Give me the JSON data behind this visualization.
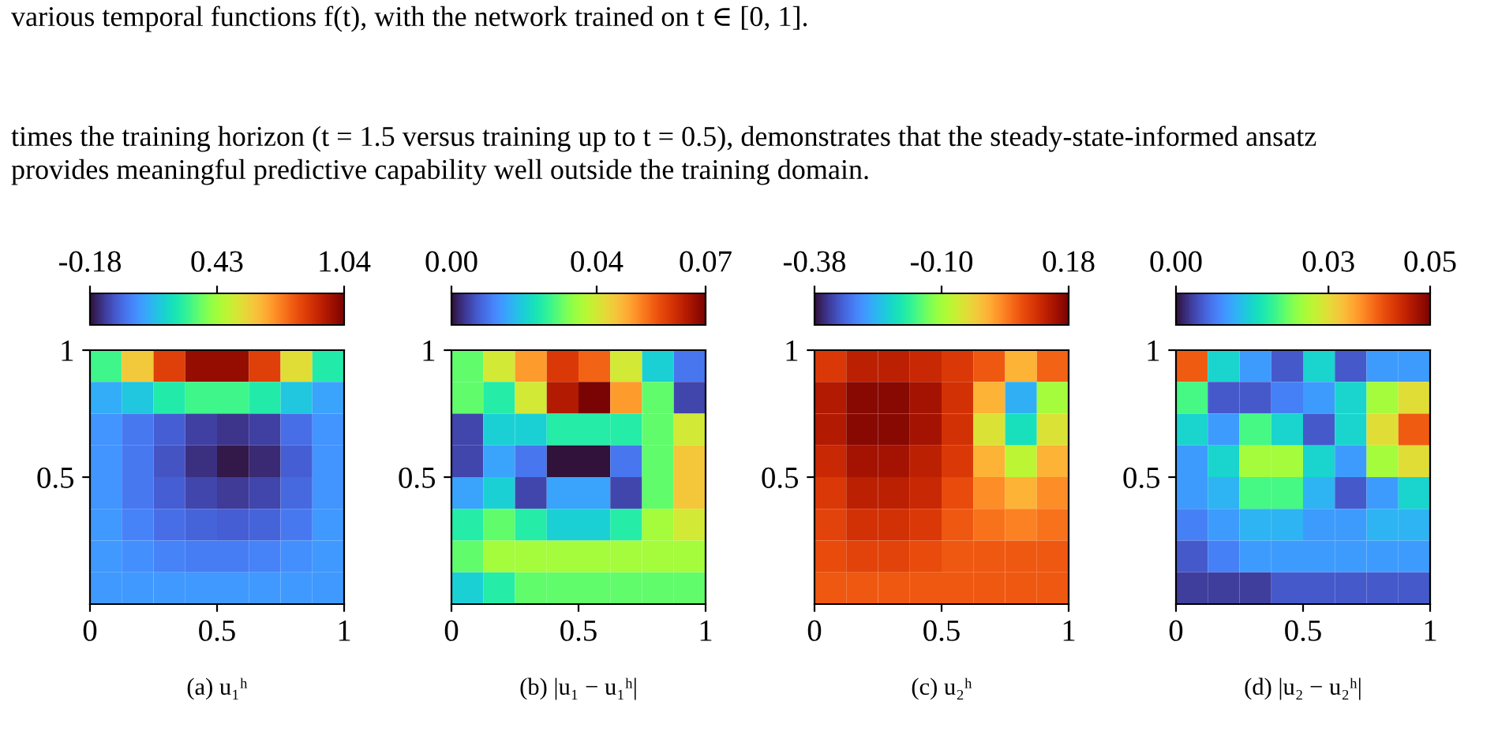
{
  "chart_data": [
    {
      "type": "heatmap",
      "xlabel": "(a) u₁ʰ",
      "annotations": [
        "various temporal functions f(t), with the network trained on t ∈ [0, 1].",
        "times the training horizon (t = 1.5 versus training up to t = 0.5), demonstrates that the steady-state-informed ansatz",
        "provides meaningful predictive capability well outside the training domain."
      ],
      "xlim": [
        0,
        1
      ],
      "ylim": [
        0,
        1
      ],
      "xticks": [
        0,
        0.5,
        1
      ],
      "yticks": [
        0.5,
        1
      ],
      "clim": [
        -0.18,
        1.04
      ],
      "cticks": [
        {
          "value": -0.18,
          "label": "-0.18"
        },
        {
          "value": 0.43,
          "label": "0.43"
        },
        {
          "value": 1.04,
          "label": "1.04"
        }
      ],
      "cells": [
        [
          0.3,
          0.6,
          0.85,
          1.0,
          1.0,
          0.85,
          0.55,
          0.25
        ],
        [
          0.1,
          0.15,
          0.25,
          0.3,
          0.3,
          0.25,
          0.15,
          0.08
        ],
        [
          0.05,
          0.0,
          -0.05,
          -0.1,
          -0.12,
          -0.1,
          -0.02,
          0.05
        ],
        [
          0.05,
          0.0,
          -0.07,
          -0.13,
          -0.17,
          -0.14,
          -0.05,
          0.05
        ],
        [
          0.05,
          0.0,
          -0.05,
          -0.09,
          -0.11,
          -0.09,
          -0.03,
          0.05
        ],
        [
          0.06,
          0.02,
          -0.02,
          -0.04,
          -0.05,
          -0.04,
          0.0,
          0.06
        ],
        [
          0.06,
          0.04,
          0.02,
          0.01,
          0.01,
          0.02,
          0.04,
          0.06
        ],
        [
          0.06,
          0.06,
          0.06,
          0.06,
          0.06,
          0.06,
          0.06,
          0.06
        ]
      ]
    },
    {
      "type": "heatmap",
      "xlabel": "(b) |u₁ − u₁ʰ|",
      "xlim": [
        0,
        1
      ],
      "ylim": [
        0,
        1
      ],
      "xticks": [
        0,
        0.5,
        1
      ],
      "yticks": [
        0.5,
        1
      ],
      "clim": [
        0,
        0.07
      ],
      "cticks": [
        {
          "value": 0,
          "label": "0.00"
        },
        {
          "value": 0.04,
          "label": "0.04"
        },
        {
          "value": 0.07,
          "label": "0.07"
        }
      ],
      "cells": [
        [
          0.03,
          0.04,
          0.05,
          0.06,
          0.055,
          0.04,
          0.02,
          0.01
        ],
        [
          0.03,
          0.025,
          0.04,
          0.065,
          0.07,
          0.05,
          0.03,
          0.005
        ],
        [
          0.005,
          0.02,
          0.02,
          0.025,
          0.025,
          0.025,
          0.03,
          0.04
        ],
        [
          0.005,
          0.015,
          0.01,
          0.0,
          0.0,
          0.01,
          0.03,
          0.045
        ],
        [
          0.015,
          0.02,
          0.005,
          0.015,
          0.015,
          0.005,
          0.03,
          0.045
        ],
        [
          0.025,
          0.03,
          0.025,
          0.02,
          0.02,
          0.025,
          0.035,
          0.04
        ],
        [
          0.03,
          0.035,
          0.035,
          0.035,
          0.035,
          0.035,
          0.035,
          0.035
        ],
        [
          0.02,
          0.025,
          0.03,
          0.03,
          0.03,
          0.03,
          0.03,
          0.03
        ]
      ]
    },
    {
      "type": "heatmap",
      "xlabel": "(c) u₂ʰ",
      "xlim": [
        0,
        1
      ],
      "ylim": [
        0,
        1
      ],
      "xticks": [
        0,
        0.5,
        1
      ],
      "yticks": [
        0.5,
        1
      ],
      "clim": [
        -0.38,
        0.18
      ],
      "cticks": [
        {
          "value": -0.38,
          "label": "-0.38"
        },
        {
          "value": -0.1,
          "label": "-0.10"
        },
        {
          "value": 0.18,
          "label": "0.18"
        }
      ],
      "cells": [
        [
          0.1,
          0.13,
          0.13,
          0.12,
          0.1,
          0.07,
          0.0,
          0.06
        ],
        [
          0.14,
          0.17,
          0.17,
          0.15,
          0.11,
          0.0,
          -0.25,
          -0.1
        ],
        [
          0.14,
          0.17,
          0.17,
          0.15,
          0.11,
          -0.05,
          -0.2,
          -0.05
        ],
        [
          0.12,
          0.15,
          0.15,
          0.13,
          0.1,
          0.0,
          -0.08,
          0.0
        ],
        [
          0.1,
          0.13,
          0.13,
          0.12,
          0.08,
          0.03,
          0.0,
          0.03
        ],
        [
          0.09,
          0.11,
          0.11,
          0.1,
          0.07,
          0.05,
          0.04,
          0.05
        ],
        [
          0.08,
          0.09,
          0.09,
          0.08,
          0.07,
          0.07,
          0.07,
          0.07
        ],
        [
          0.07,
          0.07,
          0.07,
          0.07,
          0.07,
          0.07,
          0.07,
          0.07
        ]
      ]
    },
    {
      "type": "heatmap",
      "xlabel": "(d) |u₂ − u₂ʰ|",
      "xlim": [
        0,
        1
      ],
      "ylim": [
        0,
        1
      ],
      "xticks": [
        0,
        0.5,
        1
      ],
      "yticks": [
        0.5,
        1
      ],
      "clim": [
        0,
        0.05
      ],
      "cticks": [
        {
          "value": 0,
          "label": "0.00"
        },
        {
          "value": 0.03,
          "label": "0.03"
        },
        {
          "value": 0.05,
          "label": "0.05"
        }
      ],
      "cells": [
        [
          0.04,
          0.015,
          0.01,
          0.005,
          0.015,
          0.005,
          0.01,
          0.01
        ],
        [
          0.02,
          0.005,
          0.005,
          0.008,
          0.01,
          0.015,
          0.025,
          0.03
        ],
        [
          0.015,
          0.01,
          0.02,
          0.015,
          0.005,
          0.015,
          0.03,
          0.04
        ],
        [
          0.01,
          0.015,
          0.025,
          0.025,
          0.015,
          0.01,
          0.025,
          0.03
        ],
        [
          0.01,
          0.012,
          0.02,
          0.02,
          0.012,
          0.005,
          0.01,
          0.015
        ],
        [
          0.008,
          0.01,
          0.012,
          0.012,
          0.01,
          0.01,
          0.012,
          0.012
        ],
        [
          0.005,
          0.008,
          0.01,
          0.01,
          0.01,
          0.01,
          0.01,
          0.01
        ],
        [
          0.003,
          0.003,
          0.003,
          0.005,
          0.005,
          0.005,
          0.005,
          0.005
        ]
      ]
    }
  ]
}
